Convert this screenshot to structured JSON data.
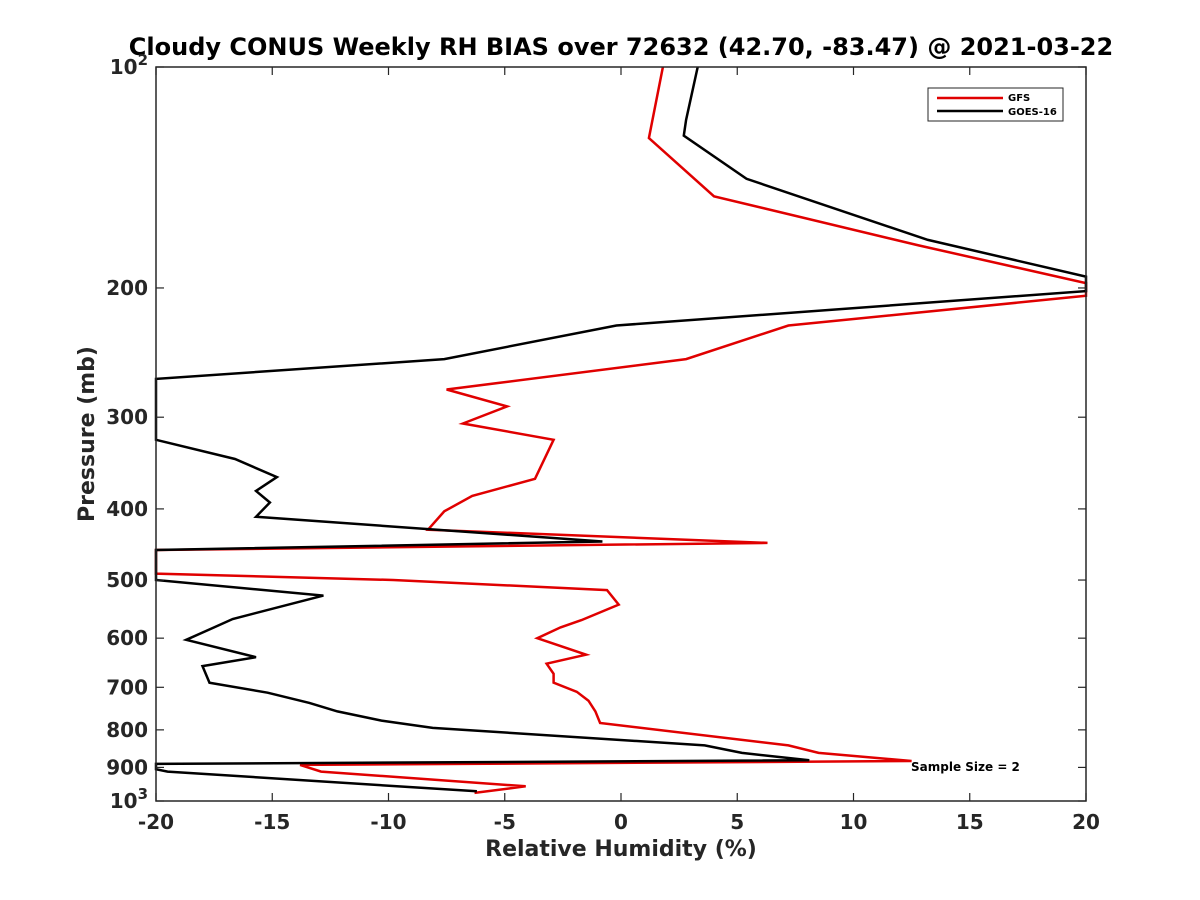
{
  "chart_data": {
    "type": "line",
    "title": "Cloudy CONUS Weekly RH BIAS over 72632 (42.70, -83.47) @ 2021-03-22",
    "xlabel": "Relative Humidity (%)",
    "ylabel": "Pressure (mb)",
    "xlim": [
      -20,
      20
    ],
    "ylim": [
      100,
      1000
    ],
    "y_scale": "log",
    "y_reversed": true,
    "grid": false,
    "legend_position": "top-right",
    "xticks": [
      -20,
      -15,
      -10,
      -5,
      0,
      5,
      10,
      15,
      20
    ],
    "yticks": [
      {
        "value": 100,
        "base": "10",
        "exp": "2"
      },
      {
        "value": 200,
        "label": "200"
      },
      {
        "value": 300,
        "label": "300"
      },
      {
        "value": 400,
        "label": "400"
      },
      {
        "value": 500,
        "label": "500"
      },
      {
        "value": 600,
        "label": "600"
      },
      {
        "value": 700,
        "label": "700"
      },
      {
        "value": 800,
        "label": "800"
      },
      {
        "value": 900,
        "label": "900"
      },
      {
        "value": 1000,
        "base": "10",
        "exp": "3"
      }
    ],
    "annotation": "Sample Size = 2",
    "series": [
      {
        "name": "GFS",
        "color": "#e00000",
        "points": [
          [
            1.8,
            100
          ],
          [
            1.2,
            125
          ],
          [
            4.0,
            150
          ],
          [
            12.8,
            175
          ],
          [
            20.0,
            197
          ],
          [
            20.0,
            205
          ],
          [
            7.2,
            225
          ],
          [
            2.8,
            250
          ],
          [
            -7.5,
            275
          ],
          [
            -4.9,
            290
          ],
          [
            -6.8,
            306
          ],
          [
            -2.9,
            322
          ],
          [
            -3.7,
            364
          ],
          [
            -6.4,
            384
          ],
          [
            -7.6,
            403
          ],
          [
            -8.3,
            427
          ],
          [
            6.3,
            445
          ],
          [
            -20.0,
            455
          ],
          [
            -20.0,
            490
          ],
          [
            -9.8,
            500
          ],
          [
            -0.6,
            516
          ],
          [
            -0.1,
            540
          ],
          [
            -1.7,
            567
          ],
          [
            -2.6,
            580
          ],
          [
            -3.6,
            600
          ],
          [
            -1.5,
            632
          ],
          [
            -3.2,
            650
          ],
          [
            -2.9,
            671
          ],
          [
            -2.9,
            690
          ],
          [
            -1.9,
            710
          ],
          [
            -1.4,
            730
          ],
          [
            -1.1,
            755
          ],
          [
            -0.9,
            783
          ],
          [
            7.2,
            840
          ],
          [
            8.5,
            860
          ],
          [
            12.5,
            882
          ],
          [
            -13.8,
            893
          ],
          [
            -12.9,
            912
          ],
          [
            -4.1,
            955
          ],
          [
            -6.3,
            975
          ]
        ]
      },
      {
        "name": "GOES-16",
        "color": "#000000",
        "points": [
          [
            3.3,
            100
          ],
          [
            2.8,
            118
          ],
          [
            2.7,
            124
          ],
          [
            5.4,
            142
          ],
          [
            13.2,
            172
          ],
          [
            20.0,
            193
          ],
          [
            20.0,
            202
          ],
          [
            -0.2,
            225
          ],
          [
            -7.6,
            250
          ],
          [
            -20.0,
            266
          ],
          [
            -20.0,
            322
          ],
          [
            -16.6,
            342
          ],
          [
            -14.8,
            362
          ],
          [
            -15.7,
            378
          ],
          [
            -15.1,
            392
          ],
          [
            -15.7,
            410
          ],
          [
            -0.8,
            443
          ],
          [
            -20.0,
            455
          ],
          [
            -20.0,
            500
          ],
          [
            -12.8,
            525
          ],
          [
            -16.7,
            565
          ],
          [
            -17.5,
            580
          ],
          [
            -18.7,
            603
          ],
          [
            -15.7,
            637
          ],
          [
            -18.0,
            655
          ],
          [
            -17.7,
            690
          ],
          [
            -15.2,
            712
          ],
          [
            -13.4,
            735
          ],
          [
            -12.2,
            755
          ],
          [
            -10.3,
            777
          ],
          [
            -8.1,
            795
          ],
          [
            3.6,
            840
          ],
          [
            5.2,
            860
          ],
          [
            8.1,
            880
          ],
          [
            -20.0,
            890
          ],
          [
            -20.0,
            905
          ],
          [
            -19.5,
            912
          ],
          [
            -6.2,
            970
          ]
        ]
      }
    ]
  }
}
